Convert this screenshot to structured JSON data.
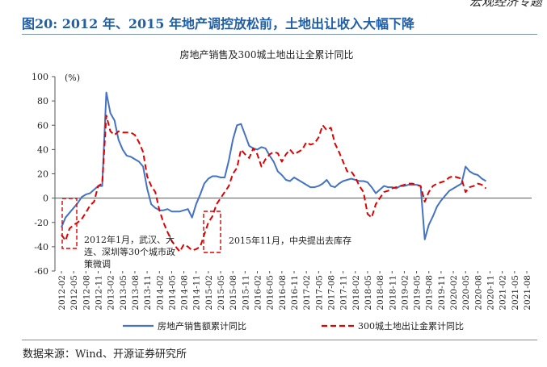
{
  "header": {
    "corner_text": "宏观经济专题"
  },
  "figure": {
    "title": "图20: 2012 年、2015 年地产调控放松前，土地出让收入大幅下降",
    "source": "数据来源：Wind、开源证券研究所"
  },
  "colors": {
    "series1": "#4472c4",
    "series2": "#e00000",
    "box": "#e00000",
    "title": "#1f5fa8"
  },
  "chart_data": {
    "type": "line",
    "title": "房地产销售及300城土地出让全累计同比",
    "ylabel": "(%)",
    "ylim": [
      -60,
      100
    ],
    "yticks": [
      -60,
      -40,
      -20,
      0,
      20,
      40,
      60,
      80,
      100
    ],
    "x_tick_labels": [
      "2012-02",
      "2012-05",
      "2012-08",
      "2012-11",
      "2013-02",
      "2013-05",
      "2013-08",
      "2013-11",
      "2014-02",
      "2014-05",
      "2014-08",
      "2014-11",
      "2015-02",
      "2015-05",
      "2015-08",
      "2015-11",
      "2016-02",
      "2016-05",
      "2016-08",
      "2016-11",
      "2017-02",
      "2017-05",
      "2017-08",
      "2017-11",
      "2018-02",
      "2018-05",
      "2018-08",
      "2018-11",
      "2019-02",
      "2019-05",
      "2019-08",
      "2019-11",
      "2020-02",
      "2020-05",
      "2020-08",
      "2020-11",
      "2021-02",
      "2021-05",
      "2021-08"
    ],
    "series": [
      {
        "name": "房地产销售额累计同比",
        "style": "solid",
        "start": "2012-02",
        "values": [
          -24,
          -16,
          -12,
          -8,
          -4,
          1,
          3,
          4,
          7,
          10,
          10,
          87,
          70,
          64,
          48,
          40,
          35,
          34,
          32,
          30,
          26,
          8,
          -5,
          -8,
          -10,
          -10,
          -9,
          -11,
          -11,
          -11,
          -10,
          -9,
          -16,
          -5,
          3,
          12,
          16,
          18,
          18,
          17,
          17,
          31,
          48,
          60,
          61,
          52,
          43,
          41,
          40,
          42,
          41,
          35,
          30,
          22,
          19,
          15,
          14,
          17,
          15,
          13,
          11,
          9,
          9,
          10,
          12,
          15,
          10,
          9,
          12,
          14,
          15,
          16,
          15,
          14,
          14,
          13,
          9,
          4,
          7,
          10,
          9,
          9,
          8,
          10,
          10,
          11,
          11,
          11,
          10,
          -34,
          -22,
          -15,
          -7,
          -2,
          2,
          6,
          8,
          10,
          12,
          26,
          22,
          20,
          19,
          16,
          14
        ]
      },
      {
        "name": "300城土地出让金累计同比",
        "style": "dashed",
        "start": "2012-02",
        "values": [
          -30,
          -35,
          -25,
          -22,
          -20,
          -17,
          -12,
          -6,
          -3,
          10,
          12,
          68,
          55,
          52,
          55,
          54,
          54,
          54,
          52,
          46,
          38,
          18,
          10,
          5,
          -10,
          -20,
          -28,
          -35,
          -40,
          -44,
          -38,
          -40,
          -43,
          -42,
          -40,
          -30,
          -20,
          -15,
          -5,
          0,
          5,
          10,
          20,
          25,
          40,
          36,
          33,
          41,
          36,
          26,
          32,
          36,
          38,
          37,
          30,
          36,
          40,
          36,
          38,
          40,
          46,
          44,
          45,
          50,
          60,
          56,
          58,
          45,
          38,
          30,
          22,
          22,
          17,
          10,
          5,
          -13,
          -16,
          -5,
          0,
          5,
          6,
          8,
          9,
          10,
          11,
          12,
          12,
          11,
          10,
          -3,
          5,
          10,
          12,
          13,
          14,
          17,
          18,
          17,
          16,
          5,
          9,
          10,
          12,
          11,
          8
        ]
      }
    ],
    "legend": {
      "position": "bottom",
      "entries": [
        "房地产销售额累计同比",
        "300城土地出让金累计同比"
      ]
    },
    "annotations": [
      {
        "text_lines": [
          "2012年1月，武汉、大",
          "连、深圳等30个城市政",
          "策微调"
        ]
      },
      {
        "text_lines": [
          "2015年11月，中央提出去库存"
        ]
      }
    ]
  }
}
